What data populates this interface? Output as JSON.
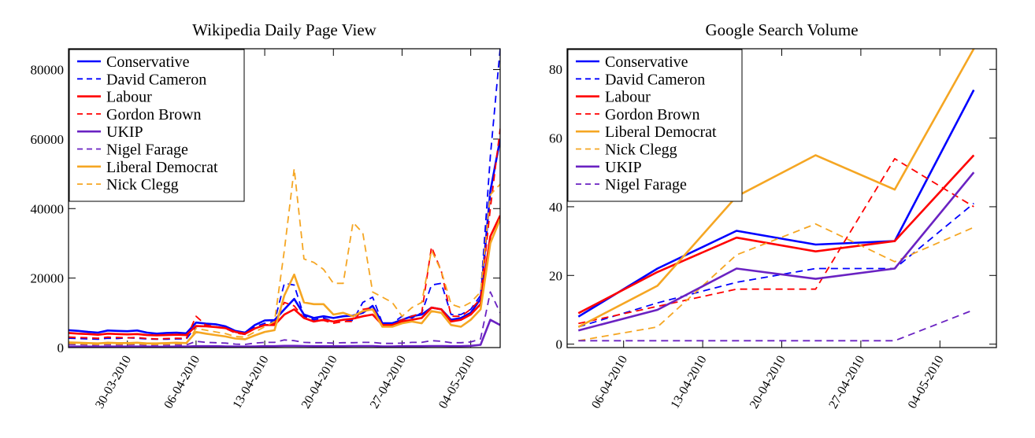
{
  "chart_data": [
    {
      "type": "line",
      "title": "Wikipedia Daily Page View",
      "xlabel": "",
      "ylabel": "",
      "x_axis": {
        "type": "date",
        "range": [
          "2010-03-24",
          "2010-05-07"
        ],
        "ticks": [
          "2010-03-30",
          "2010-04-06",
          "2010-04-13",
          "2010-04-20",
          "2010-04-27",
          "2010-05-04"
        ],
        "tick_labels": [
          "30-03-2010",
          "06-04-2010",
          "13-04-2010",
          "20-04-2010",
          "27-04-2010",
          "04-05-2010"
        ]
      },
      "y_axis": {
        "range": [
          0,
          86000
        ],
        "ticks": [
          0,
          20000,
          40000,
          60000,
          80000
        ],
        "tick_labels": [
          "0",
          "20000",
          "40000",
          "60000",
          "80000"
        ]
      },
      "grid": false,
      "legend_position": "top-left",
      "x": [
        "2010-03-24",
        "2010-03-25",
        "2010-03-26",
        "2010-03-27",
        "2010-03-28",
        "2010-03-29",
        "2010-03-30",
        "2010-03-31",
        "2010-04-01",
        "2010-04-02",
        "2010-04-03",
        "2010-04-04",
        "2010-04-05",
        "2010-04-06",
        "2010-04-07",
        "2010-04-08",
        "2010-04-09",
        "2010-04-10",
        "2010-04-11",
        "2010-04-12",
        "2010-04-13",
        "2010-04-14",
        "2010-04-15",
        "2010-04-16",
        "2010-04-17",
        "2010-04-18",
        "2010-04-19",
        "2010-04-20",
        "2010-04-21",
        "2010-04-22",
        "2010-04-23",
        "2010-04-24",
        "2010-04-25",
        "2010-04-26",
        "2010-04-27",
        "2010-04-28",
        "2010-04-29",
        "2010-04-30",
        "2010-05-01",
        "2010-05-02",
        "2010-05-03",
        "2010-05-04",
        "2010-05-05",
        "2010-05-06",
        "2010-05-07"
      ],
      "series": [
        {
          "name": "Conservative",
          "color": "#0000ff",
          "dash": "solid",
          "values": [
            5000,
            4800,
            4500,
            4300,
            4900,
            4800,
            4700,
            4900,
            4300,
            4000,
            4200,
            4300,
            4100,
            7200,
            6900,
            6700,
            6100,
            4800,
            4300,
            6500,
            7800,
            7900,
            11000,
            14000,
            9500,
            8500,
            9000,
            8500,
            9000,
            9200,
            10000,
            12000,
            7000,
            7000,
            8000,
            9000,
            9500,
            11500,
            11000,
            8000,
            8500,
            10000,
            14000,
            45000,
            60000
          ]
        },
        {
          "name": "David Cameron",
          "color": "#0000ff",
          "dash": "dashed",
          "values": [
            2700,
            2600,
            2500,
            2400,
            2700,
            2600,
            2800,
            2700,
            2500,
            2400,
            2400,
            2500,
            2500,
            6000,
            6500,
            6000,
            5500,
            4200,
            3800,
            6000,
            7000,
            7500,
            18500,
            18000,
            9000,
            8000,
            8500,
            7500,
            8000,
            7800,
            13000,
            14500,
            7000,
            7000,
            9000,
            8500,
            10000,
            18000,
            18500,
            9500,
            9500,
            11000,
            15000,
            55000,
            86000
          ]
        },
        {
          "name": "Labour",
          "color": "#ff0000",
          "dash": "solid",
          "values": [
            4200,
            4000,
            3900,
            3700,
            4000,
            3900,
            3800,
            3900,
            3600,
            3500,
            3600,
            3700,
            3600,
            6200,
            6100,
            5900,
            5600,
            4500,
            4000,
            5500,
            6500,
            6500,
            9500,
            11000,
            8500,
            7500,
            8000,
            7500,
            8000,
            8300,
            9000,
            9500,
            6500,
            6500,
            7500,
            8000,
            8500,
            11500,
            11000,
            7500,
            8000,
            9500,
            12500,
            32000,
            38000
          ]
        },
        {
          "name": "Gordon Brown",
          "color": "#ff0000",
          "dash": "dashed",
          "values": [
            3000,
            2900,
            2800,
            2700,
            3000,
            2900,
            2800,
            2900,
            2600,
            2500,
            2600,
            2700,
            2600,
            9000,
            6500,
            6000,
            5500,
            4200,
            3800,
            5500,
            6500,
            7000,
            13000,
            12000,
            8500,
            7500,
            7800,
            7000,
            7500,
            7500,
            11000,
            11500,
            6500,
            6500,
            8000,
            9000,
            10000,
            29000,
            22000,
            9000,
            9000,
            11000,
            14000,
            40000,
            63000
          ]
        },
        {
          "name": "UKIP",
          "color": "#6a22c2",
          "dash": "solid",
          "values": [
            300,
            300,
            300,
            250,
            300,
            300,
            300,
            300,
            300,
            250,
            250,
            300,
            300,
            400,
            400,
            400,
            350,
            300,
            300,
            350,
            400,
            400,
            500,
            500,
            450,
            400,
            400,
            400,
            400,
            450,
            450,
            450,
            350,
            350,
            400,
            400,
            400,
            450,
            450,
            400,
            400,
            500,
            800,
            8000,
            6500
          ]
        },
        {
          "name": "Nigel Farage",
          "color": "#6a22c2",
          "dash": "dashed",
          "values": [
            900,
            850,
            800,
            750,
            850,
            800,
            800,
            850,
            750,
            700,
            750,
            800,
            750,
            1800,
            1500,
            1400,
            1300,
            1000,
            900,
            1300,
            1500,
            1500,
            2200,
            2000,
            1500,
            1400,
            1400,
            1300,
            1400,
            1400,
            1500,
            1500,
            1200,
            1200,
            1300,
            1500,
            1500,
            2000,
            1800,
            1400,
            1400,
            1600,
            2500,
            16000,
            10000
          ]
        },
        {
          "name": "Liberal Democrat",
          "color": "#f5a623",
          "dash": "solid",
          "values": [
            1500,
            1400,
            1300,
            1200,
            1400,
            1300,
            1300,
            1400,
            1200,
            1200,
            1300,
            1400,
            1300,
            4500,
            4000,
            3600,
            3200,
            2600,
            2400,
            3500,
            4500,
            5000,
            15000,
            21000,
            13000,
            12500,
            12500,
            9500,
            10000,
            9000,
            10500,
            11000,
            6000,
            6000,
            7000,
            7500,
            7000,
            10500,
            10000,
            6500,
            6000,
            8000,
            11000,
            30000,
            37000
          ]
        },
        {
          "name": "Nick Clegg",
          "color": "#f5a623",
          "dash": "dashed",
          "values": [
            1200,
            1100,
            1000,
            900,
            1100,
            1000,
            1000,
            1100,
            900,
            900,
            1000,
            1100,
            1000,
            5500,
            5000,
            4500,
            4000,
            3200,
            3000,
            4500,
            6000,
            7500,
            28000,
            51500,
            25500,
            24500,
            22500,
            18500,
            18500,
            36000,
            33000,
            16000,
            14500,
            13000,
            9000,
            11500,
            13000,
            28000,
            22000,
            12500,
            11500,
            13000,
            16000,
            44000,
            47000
          ]
        }
      ]
    },
    {
      "type": "line",
      "title": "Google Search Volume",
      "xlabel": "",
      "ylabel": "",
      "x_axis": {
        "type": "date",
        "range": [
          "2010-04-01",
          "2010-05-09"
        ],
        "ticks": [
          "2010-04-06",
          "2010-04-13",
          "2010-04-20",
          "2010-04-27",
          "2010-05-04"
        ],
        "tick_labels": [
          "06-04-2010",
          "13-04-2010",
          "20-04-2010",
          "27-04-2010",
          "04-05-2010"
        ]
      },
      "y_axis": {
        "range": [
          -1,
          86
        ],
        "ticks": [
          0,
          20,
          40,
          60,
          80
        ],
        "tick_labels": [
          "0",
          "20",
          "40",
          "60",
          "80"
        ]
      },
      "grid": false,
      "legend_position": "top-left",
      "x": [
        "2010-04-02",
        "2010-04-09",
        "2010-04-16",
        "2010-04-23",
        "2010-04-30",
        "2010-05-07"
      ],
      "series": [
        {
          "name": "Conservative",
          "color": "#0000ff",
          "dash": "solid",
          "values": [
            8,
            22,
            33,
            29,
            30,
            74
          ]
        },
        {
          "name": "David Cameron",
          "color": "#0000ff",
          "dash": "dashed",
          "values": [
            5,
            12,
            18,
            22,
            22,
            41
          ]
        },
        {
          "name": "Labour",
          "color": "#ff0000",
          "dash": "solid",
          "values": [
            9,
            21,
            31,
            27,
            30,
            55
          ]
        },
        {
          "name": "Gordon Brown",
          "color": "#ff0000",
          "dash": "dashed",
          "values": [
            6,
            11,
            16,
            16,
            54,
            40
          ]
        },
        {
          "name": "Liberal Democrat",
          "color": "#f5a623",
          "dash": "solid",
          "values": [
            5,
            17,
            43,
            55,
            45,
            86
          ]
        },
        {
          "name": "Nick Clegg",
          "color": "#f5a623",
          "dash": "dashed",
          "values": [
            1,
            5,
            26,
            35,
            24,
            34
          ]
        },
        {
          "name": "UKIP",
          "color": "#6a22c2",
          "dash": "solid",
          "values": [
            4,
            10,
            22,
            19,
            22,
            50
          ]
        },
        {
          "name": "Nigel Farage",
          "color": "#6a22c2",
          "dash": "dashed",
          "values": [
            1,
            1,
            1,
            1,
            1,
            10
          ]
        }
      ]
    }
  ]
}
